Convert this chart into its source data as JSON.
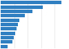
{
  "values": [
    90,
    62,
    47,
    36,
    28,
    25,
    23,
    21,
    19,
    17,
    10
  ],
  "bar_color": "#2f7fc1",
  "background_color": "#ffffff",
  "grid_color": "#e0e0e0",
  "xlim": [
    0,
    100
  ]
}
